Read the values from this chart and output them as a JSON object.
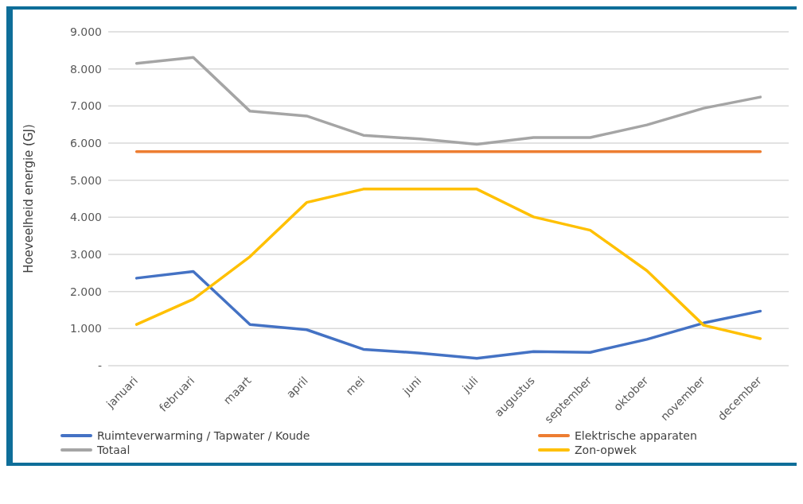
{
  "chart_data": {
    "type": "line",
    "ylabel": "Hoeveelheid energie (GJ)",
    "categories": [
      "januari",
      "februari",
      "maart",
      "april",
      "mei",
      "juni",
      "juli",
      "augustus",
      "september",
      "oktober",
      "november",
      "december"
    ],
    "series": [
      {
        "name": "Ruimteverwarming / Tapwater / Koude",
        "color": "#4472c4",
        "values": [
          2360,
          2540,
          1110,
          970,
          440,
          340,
          200,
          380,
          360,
          710,
          1150,
          1470
        ]
      },
      {
        "name": "Elektrische apparaten",
        "color": "#ed7d31",
        "values": [
          5770,
          5770,
          5770,
          5770,
          5770,
          5770,
          5770,
          5770,
          5770,
          5770,
          5770,
          5770
        ]
      },
      {
        "name": "Totaal",
        "color": "#a5a5a5",
        "values": [
          8150,
          8310,
          6860,
          6730,
          6210,
          6110,
          5970,
          6150,
          6150,
          6490,
          6940,
          7240
        ]
      },
      {
        "name": "Zon-opwek",
        "color": "#ffc000",
        "values": [
          1110,
          1790,
          2940,
          4400,
          4760,
          4760,
          4760,
          4010,
          3650,
          2560,
          1090,
          730
        ]
      }
    ],
    "ylim": [
      0,
      9000
    ],
    "yticks": [
      {
        "value": 0,
        "label": "-"
      },
      {
        "value": 1000,
        "label": "1.000"
      },
      {
        "value": 2000,
        "label": "2.000"
      },
      {
        "value": 3000,
        "label": "3.000"
      },
      {
        "value": 4000,
        "label": "4.000"
      },
      {
        "value": 5000,
        "label": "5.000"
      },
      {
        "value": 6000,
        "label": "6.000"
      },
      {
        "value": 7000,
        "label": "7.000"
      },
      {
        "value": 8000,
        "label": "8.000"
      },
      {
        "value": 9000,
        "label": "9.000"
      }
    ],
    "grid": "y",
    "legend": "bottom",
    "marker": "none",
    "line_style": "solid"
  }
}
